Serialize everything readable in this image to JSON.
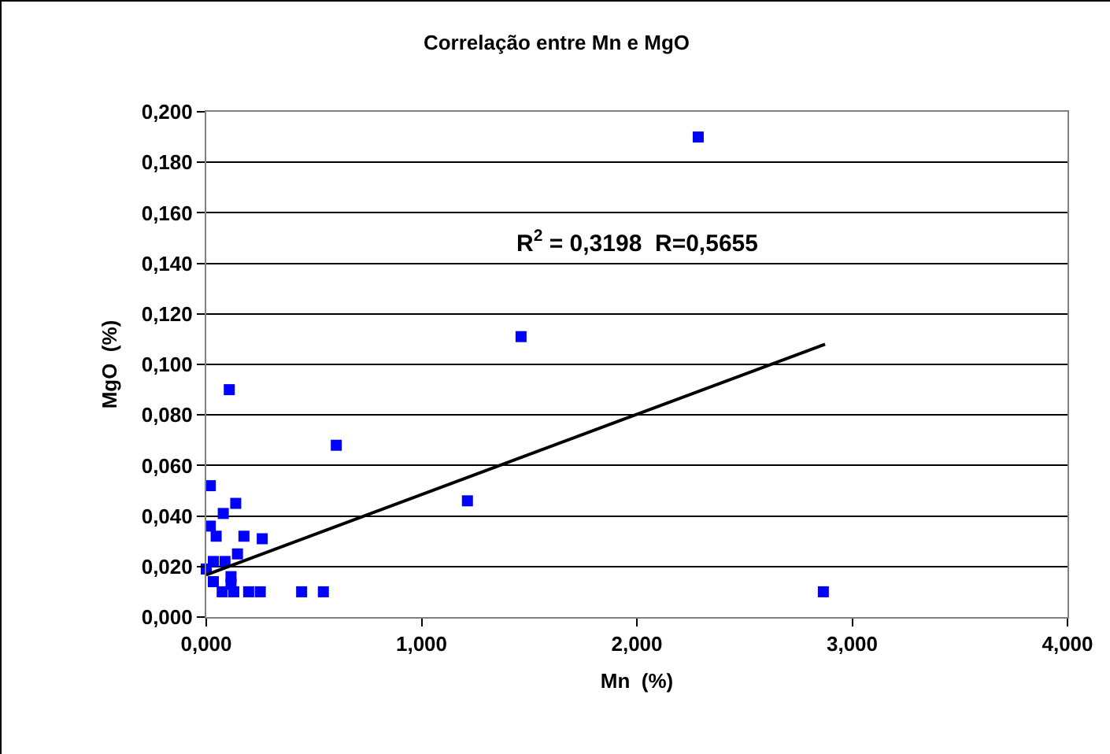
{
  "chart_data": {
    "type": "scatter",
    "title": "Correlação entre Mn e MgO",
    "xlabel": "Mn  (%)",
    "ylabel": "MgO  (%)",
    "annotations": [
      "R$^{2}$ = 0,3198  R=0,5655"
    ],
    "series": [
      {
        "color": "#0000ff",
        "marker": "square",
        "x": [
          2.285,
          1.462,
          0.107,
          0.604,
          1.213,
          2.866,
          0.019,
          0.137,
          0.079,
          0.019,
          0.046,
          0.175,
          0.26,
          0.145,
          0.033,
          0.087,
          0,
          0.115,
          0.033,
          0.115,
          0.074,
          0.128,
          0.197,
          0.251,
          0.443,
          0.544
        ],
        "values": [
          0.19,
          0.111,
          0.09,
          0.068,
          0.046,
          0.01,
          0.052,
          0.045,
          0.041,
          0.036,
          0.032,
          0.032,
          0.031,
          0.025,
          0.022,
          0.022,
          0.019,
          0.016,
          0.014,
          0.013,
          0.01,
          0.01,
          0.01,
          0.01,
          0.01,
          0.01
        ]
      },
      {
        "type": "line",
        "color": "#000000",
        "marker": "none",
        "x": [
          0,
          2.874
        ],
        "values": [
          0.0167,
          0.108
        ]
      }
    ],
    "xlim": [
      0,
      4
    ],
    "xticks": [
      {
        "value": 0,
        "label": "0,000"
      },
      {
        "value": 1,
        "label": "1,000"
      },
      {
        "value": 2,
        "label": "2,000"
      },
      {
        "value": 3,
        "label": "3,000"
      },
      {
        "value": 4,
        "label": "4,000"
      }
    ],
    "ylim": [
      0,
      0.2
    ],
    "yticks": [
      {
        "value": 0,
        "label": "0,000"
      },
      {
        "value": 0.02,
        "label": "0,020"
      },
      {
        "value": 0.04,
        "label": "0,040"
      },
      {
        "value": 0.06,
        "label": "0,060"
      },
      {
        "value": 0.08,
        "label": "0,080"
      },
      {
        "value": 0.1,
        "label": "0,100"
      },
      {
        "value": 0.12,
        "label": "0,120"
      },
      {
        "value": 0.14,
        "label": "0,140"
      },
      {
        "value": 0.16,
        "label": "0,160"
      },
      {
        "value": 0.18,
        "label": "0,180"
      },
      {
        "value": 0.2,
        "label": "0,200"
      }
    ],
    "grid": "y"
  }
}
